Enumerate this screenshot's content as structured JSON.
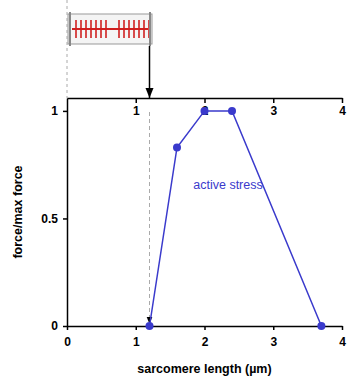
{
  "chart_data": {
    "type": "line",
    "x": [
      1.2,
      1.6,
      2.0,
      2.4,
      3.7
    ],
    "series": [
      {
        "name": "active stress",
        "color": "#3a3acc",
        "values": [
          0,
          0.83,
          1,
          1,
          0
        ],
        "marker": "circle"
      }
    ],
    "x_label": "sarcomere length (µm)",
    "y_label": "force/max force",
    "xlim": [
      0,
      4
    ],
    "ylim": [
      0,
      1.06
    ],
    "xticks": [
      0,
      1,
      2,
      3,
      4
    ],
    "yticks": [
      0,
      0.5,
      1
    ],
    "top_xticks": [
      1,
      2,
      3,
      4
    ]
  }
}
